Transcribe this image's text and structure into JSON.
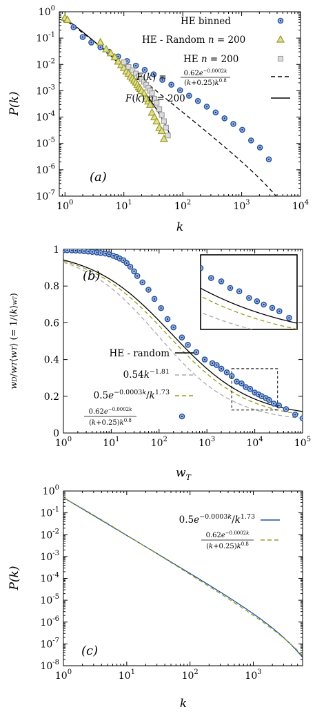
{
  "chart_data": [
    {
      "type": "scatter",
      "panel_label": "(a)",
      "xlabel": "k",
      "ylabel": "P(k)",
      "xscale": "log",
      "yscale": "log",
      "xlim": [
        0.8,
        10000
      ],
      "ylim": [
        1e-07,
        1
      ],
      "x_tick_labels": [
        "10^0",
        "10^1",
        "10^2",
        "10^3",
        "10^4"
      ],
      "y_tick_labels": [
        "10^0",
        "10^-1",
        "10^-2",
        "10^-3",
        "10^-4",
        "10^-5",
        "10^-6",
        "10^-7"
      ],
      "legend_position": "top-right",
      "series": [
        {
          "name": "HE binned",
          "marker": "circle",
          "color": "#1f4fa0",
          "x": [
            1,
            1.4,
            2,
            2.8,
            4,
            5.6,
            8,
            11.3,
            16,
            22.6,
            32,
            45,
            64,
            90,
            128,
            181,
            256,
            362,
            512,
            724,
            1024,
            1448,
            2048,
            2896
          ],
          "y": [
            0.52,
            0.26,
            0.11,
            0.068,
            0.045,
            0.03,
            0.02,
            0.0135,
            0.009,
            0.0062,
            0.0042,
            0.0026,
            0.0017,
            0.00105,
            0.00065,
            0.00041,
            0.00025,
            0.00015,
            9e-05,
            5.5e-05,
            3.3e-05,
            1.3e-05,
            7e-06,
            2.5e-06
          ]
        },
        {
          "name": "HE - Random n = 200",
          "marker": "triangle",
          "color": "#9a9a1a",
          "x": [
            1,
            1.1,
            4,
            5,
            6,
            7,
            8,
            9,
            10,
            11,
            12,
            13,
            14,
            15,
            16,
            17,
            18,
            19,
            20,
            22,
            24,
            26,
            28,
            30,
            33,
            36,
            40,
            44,
            48
          ],
          "y": [
            0.6,
            0.5,
            0.07,
            0.038,
            0.027,
            0.019,
            0.013,
            0.0095,
            0.0075,
            0.0055,
            0.0045,
            0.0035,
            0.003,
            0.0025,
            0.0021,
            0.0017,
            0.0014,
            0.0012,
            0.001,
            0.0008,
            0.0005,
            0.0004,
            0.0003,
            0.00015,
            0.0001,
            7e-05,
            4e-05,
            3e-05,
            1.5e-05
          ]
        },
        {
          "name": "HE n = 200",
          "marker": "square",
          "color": "#999999",
          "x": [
            10,
            12,
            14,
            16,
            18,
            20,
            22,
            24,
            26,
            28,
            30,
            33,
            36,
            40,
            44,
            48,
            52,
            56
          ],
          "y": [
            0.012,
            0.008,
            0.006,
            0.0045,
            0.0035,
            0.0028,
            0.0022,
            0.0017,
            0.0013,
            0.001,
            0.0008,
            0.0005,
            0.00035,
            0.0002,
            0.00012,
            7e-05,
            4e-05,
            2e-05
          ]
        },
        {
          "name": "F(k) = 0.62e^{-0.0002k} / ((k+0.25)k^{0.8})",
          "style": "dashed",
          "color": "#000000",
          "function": "0.62*exp(-0.0002*k)/((k+0.25)*k^0.8)"
        },
        {
          "name": "F(k) n = 200",
          "style": "solid",
          "color": "#000000",
          "function": "0.74*exp(-0.05*k)/((k+0.25)*k^0.8)"
        }
      ]
    },
    {
      "type": "scatter",
      "panel_label": "(b)",
      "xlabel": "w_T",
      "ylabel": "(w_D / w_T)⟨w_T⟩ (= 1/⟨k⟩_{w_T})",
      "xscale": "log",
      "yscale": "linear",
      "xlim": [
        1,
        100000
      ],
      "ylim": [
        0,
        1
      ],
      "x_tick_labels": [
        "10^0",
        "10^1",
        "10^2",
        "10^3",
        "10^4",
        "10^5"
      ],
      "y_tick_labels": [
        "0",
        "0.2",
        "0.4",
        "0.6",
        "0.8",
        "1"
      ],
      "legend_position": "bottom-left",
      "inset": "zoom of dashed region",
      "series": [
        {
          "name": "HE - random",
          "style": "solid",
          "color": "#000000"
        },
        {
          "name": "0.54k^{-1.81}",
          "style": "dashed",
          "color": "#aaaaaa"
        },
        {
          "name": "0.5e^{-0.0003k}/k^{1.73}",
          "style": "dashed",
          "color": "#9a9a1a"
        },
        {
          "name": "0.62e^{-0.0002k} / ((k+0.25)k^{0.8})",
          "marker": "circle",
          "color": "#1f4fa0",
          "x": [
            1,
            1.2,
            1.5,
            1.8,
            2.2,
            2.7,
            3.3,
            4,
            5,
            6,
            7.5,
            9,
            11,
            13,
            15,
            18,
            21,
            25,
            30,
            35,
            45,
            60,
            80,
            110,
            150,
            200,
            300,
            400,
            600,
            900,
            1300,
            1600,
            2000,
            2600,
            3300,
            4200,
            5300,
            6500,
            8000,
            10000,
            12000,
            14000,
            17000,
            20000,
            25000,
            32000,
            45000,
            70000,
            100000
          ],
          "y": [
            0.995,
            0.995,
            0.994,
            0.993,
            0.992,
            0.99,
            0.988,
            0.986,
            0.983,
            0.98,
            0.977,
            0.973,
            0.965,
            0.958,
            0.95,
            0.94,
            0.925,
            0.905,
            0.88,
            0.855,
            0.82,
            0.78,
            0.73,
            0.68,
            0.62,
            0.575,
            0.52,
            0.48,
            0.44,
            0.4,
            0.38,
            0.37,
            0.35,
            0.33,
            0.31,
            0.28,
            0.27,
            0.25,
            0.24,
            0.22,
            0.21,
            0.2,
            0.19,
            0.18,
            0.16,
            0.15,
            0.13,
            0.1,
            0.08
          ]
        }
      ]
    },
    {
      "type": "line",
      "panel_label": "(c)",
      "xlabel": "k",
      "ylabel": "P(k)",
      "xscale": "log",
      "yscale": "log",
      "xlim": [
        1,
        6000
      ],
      "ylim": [
        1e-08,
        1
      ],
      "x_tick_labels": [
        "10^0",
        "10^1",
        "10^2",
        "10^3"
      ],
      "y_tick_labels": [
        "10^0",
        "10^-1",
        "10^-2",
        "10^-3",
        "10^-4",
        "10^-5",
        "10^-6",
        "10^-7",
        "10^-8"
      ],
      "legend_position": "top-right",
      "series": [
        {
          "name": "0.5e^{-0.0003k}/k^{1.73}",
          "style": "solid",
          "color": "#1f4fa0",
          "function": "0.5*exp(-0.0003*k)/k^1.73"
        },
        {
          "name": "0.62e^{-0.0002k} / ((k+0.25)k^{0.8})",
          "style": "dashed",
          "color": "#9a9a1a",
          "function": "0.62*exp(-0.0002*k)/((k+0.25)*k^0.8)"
        }
      ]
    }
  ]
}
